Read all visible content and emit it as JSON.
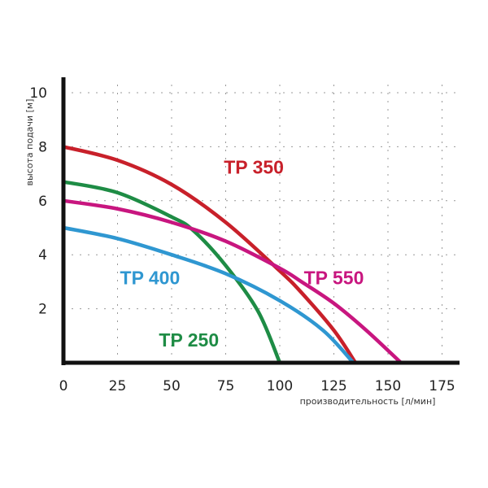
{
  "chart_data": {
    "type": "line",
    "title": "",
    "xlabel": "производительность [л/мин]",
    "ylabel": "высота подачи [м]",
    "xlim": [
      0,
      180
    ],
    "ylim": [
      0,
      10.5
    ],
    "x_ticks": [
      "0",
      "25",
      "50",
      "75",
      "100",
      "125",
      "150",
      "175"
    ],
    "y_ticks": [
      "2",
      "4",
      "6",
      "8",
      "10"
    ],
    "grid": true,
    "legend_position": "inline labels",
    "series": [
      {
        "name": "TP 350",
        "color": "#c8202a",
        "x": [
          0,
          25,
          50,
          75,
          100,
          110,
          125,
          135
        ],
        "y": [
          8.0,
          7.5,
          6.6,
          5.2,
          3.4,
          2.6,
          1.2,
          0
        ]
      },
      {
        "name": "TP 250",
        "color": "#1e8c45",
        "x": [
          0,
          25,
          50,
          60,
          75,
          90,
          100
        ],
        "y": [
          6.7,
          6.3,
          5.4,
          4.9,
          3.6,
          1.9,
          0
        ]
      },
      {
        "name": "TP 550",
        "color": "#c8167f",
        "x": [
          0,
          25,
          50,
          75,
          100,
          110,
          125,
          140,
          156
        ],
        "y": [
          6.0,
          5.7,
          5.2,
          4.5,
          3.5,
          3.0,
          2.2,
          1.2,
          0
        ]
      },
      {
        "name": "TP 400",
        "color": "#2f97d1",
        "x": [
          0,
          25,
          50,
          75,
          100,
          120,
          134
        ],
        "y": [
          5.0,
          4.6,
          4.0,
          3.3,
          2.3,
          1.2,
          0
        ]
      }
    ],
    "annotations": [
      {
        "text": "TP 350",
        "x": 88,
        "y": 7.0,
        "color": "#c8202a"
      },
      {
        "text": "TP 550",
        "x": 125,
        "y": 2.9,
        "color": "#c8167f"
      },
      {
        "text": "TP 400",
        "x": 40,
        "y": 2.9,
        "color": "#2f97d1"
      },
      {
        "text": "TP 250",
        "x": 58,
        "y": 0.6,
        "color": "#1e8c45"
      }
    ]
  }
}
